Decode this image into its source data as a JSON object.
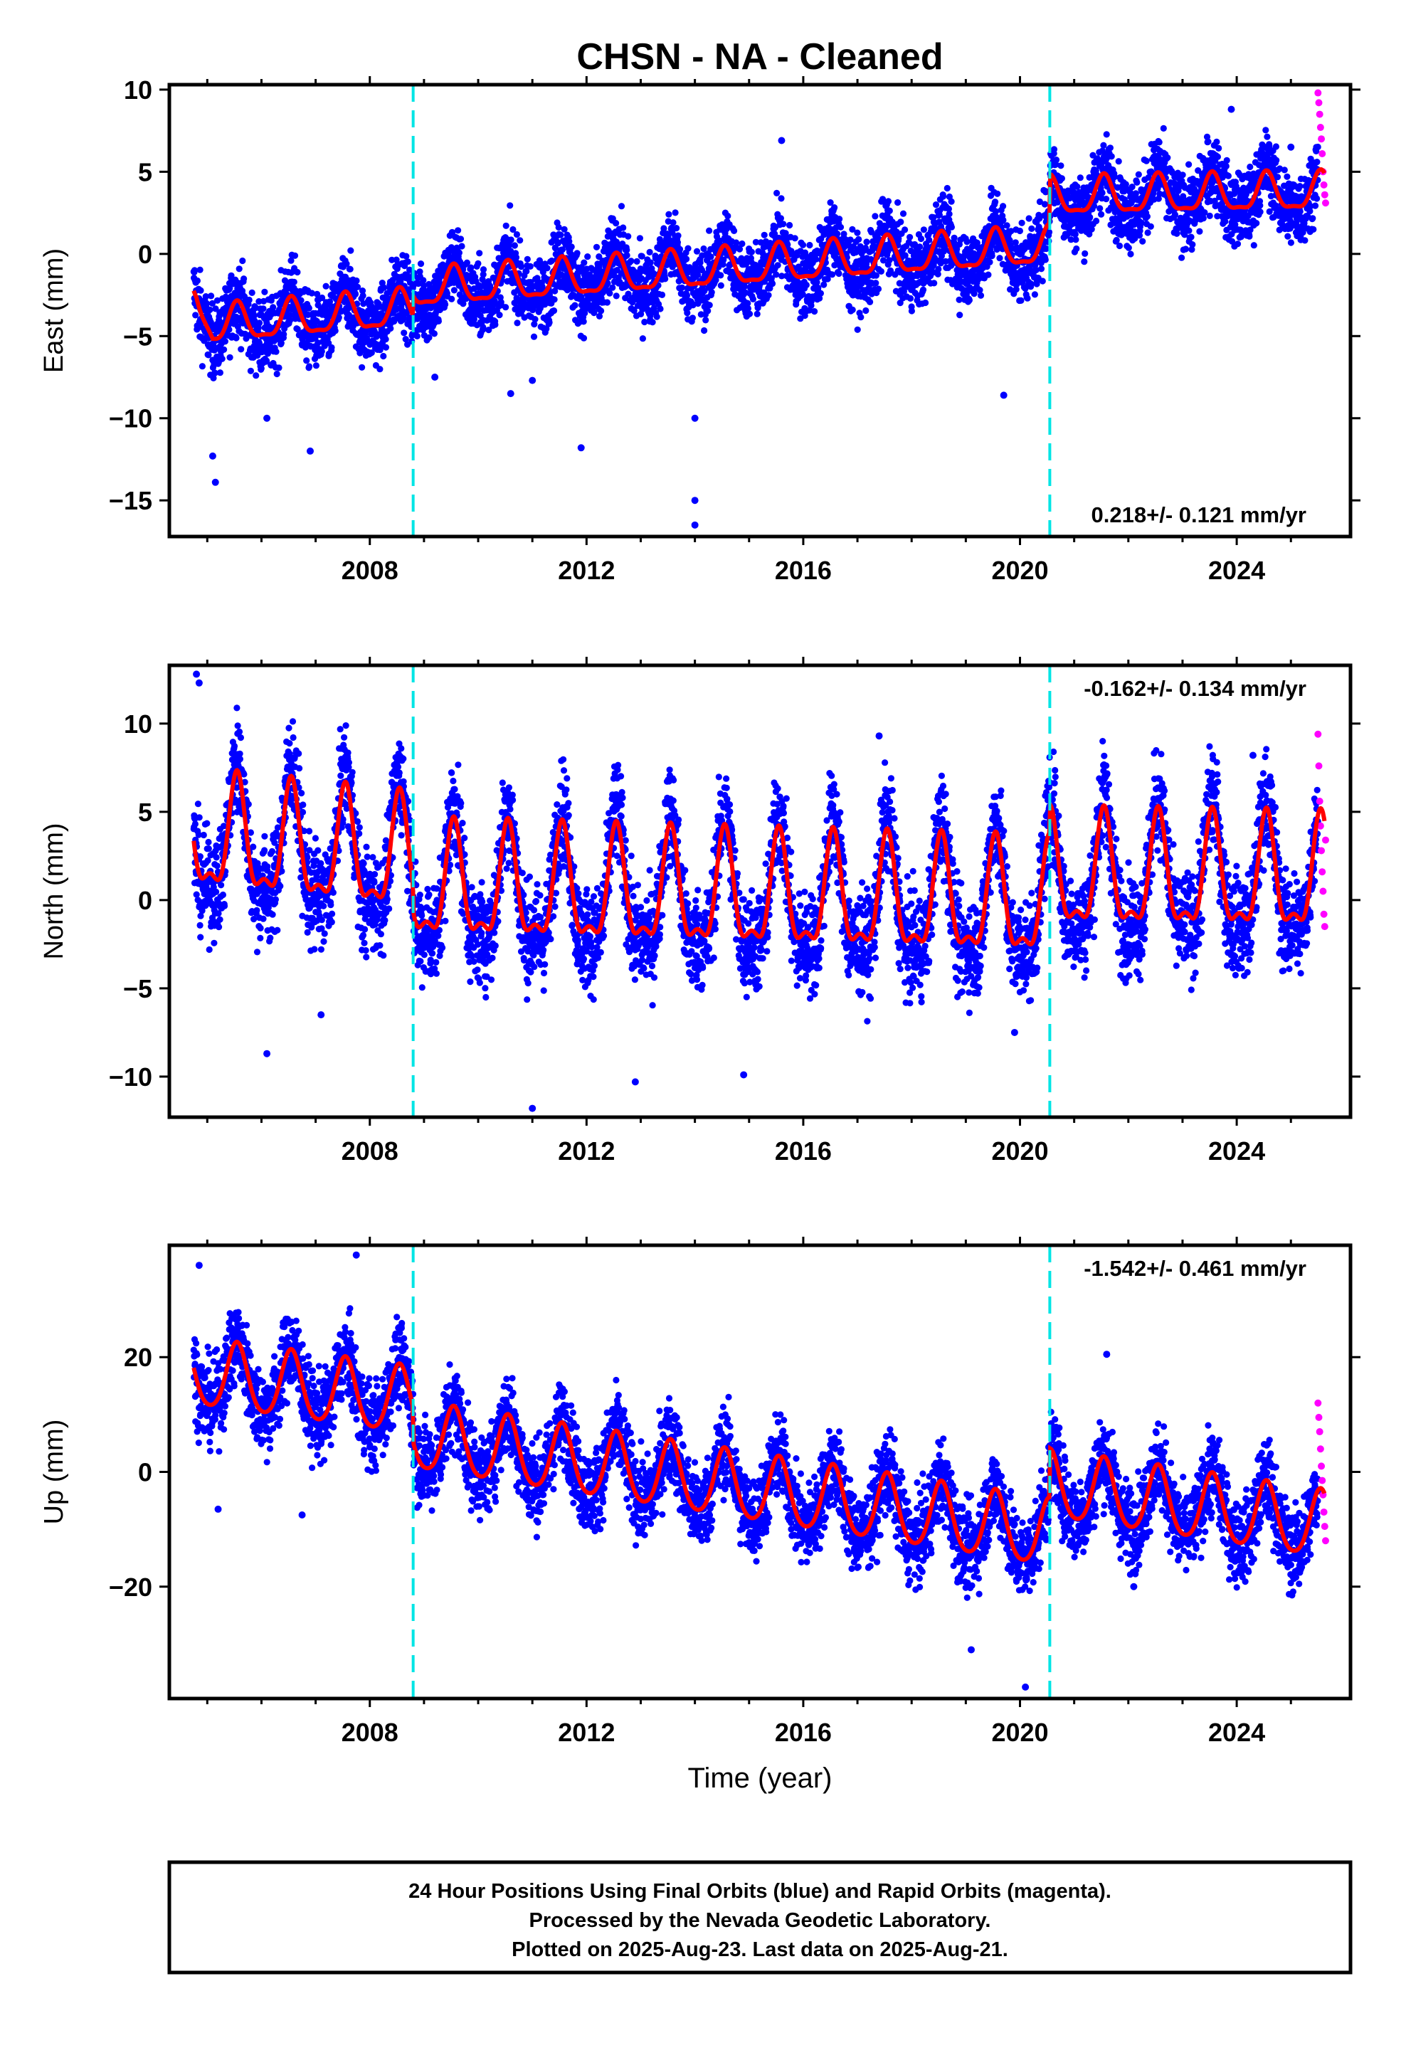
{
  "title": "CHSN  - NA - Cleaned",
  "xlabel": "Time (year)",
  "colors": {
    "final_orbits": "#0000ff",
    "rapid_orbits": "#ff00ff",
    "model_fit": "#ff0000",
    "breaks": "#00e5e5"
  },
  "footer": {
    "line1": "24 Hour Positions Using Final Orbits (blue) and Rapid Orbits (magenta).",
    "line2": "Processed by the Nevada Geodetic Laboratory.",
    "line3": "Plotted on 2025-Aug-23. Last data on 2025-Aug-21."
  },
  "chart_data": [
    {
      "type": "scatter",
      "ylabel": "East (mm)",
      "rate_label": "0.218+/- 0.121 mm/yr",
      "xlim": [
        2004.3,
        2026.1
      ],
      "ylim": [
        -17.2,
        10.3
      ],
      "x_ticks": [
        2008,
        2012,
        2016,
        2020,
        2024
      ],
      "y_ticks": [
        10,
        5,
        0,
        -5,
        -10,
        -15
      ],
      "y_tick_labels": [
        "10",
        "5",
        "0",
        "−5",
        "−10",
        "−15"
      ],
      "break_lines": [
        2008.8,
        2020.55
      ],
      "grid": false,
      "series": [
        {
          "name": "Final Orbits (blue)",
          "x_range": [
            2004.75,
            2025.5
          ],
          "amp": 1.5,
          "noise": 1.1,
          "outliers": [
            [
              2005.1,
              -12.3
            ],
            [
              2005.15,
              -13.9
            ],
            [
              2006.1,
              -10.0
            ],
            [
              2006.9,
              -12.0
            ],
            [
              2009.2,
              -7.5
            ],
            [
              2010.6,
              -8.5
            ],
            [
              2011.0,
              -7.7
            ],
            [
              2011.9,
              -11.8
            ],
            [
              2014.0,
              -10.0
            ],
            [
              2014.0,
              -15.0
            ],
            [
              2014.0,
              -16.5
            ],
            [
              2019.7,
              -8.6
            ],
            [
              2015.6,
              6.9
            ],
            [
              2023.9,
              8.8
            ],
            [
              2025.0,
              6.5
            ]
          ]
        },
        {
          "name": "Rapid Orbits (magenta)",
          "x_range": [
            2025.5,
            2025.64
          ],
          "y_values": [
            9.8,
            9.2,
            8.5,
            7.7,
            7.0,
            6.1,
            5.0,
            4.2,
            3.6,
            3.1
          ]
        },
        {
          "name": "Model fit",
          "anchors": [
            [
              2004.8,
              -2.3
            ],
            [
              2005.1,
              -4.4
            ],
            [
              2008.79,
              -3.4
            ],
            [
              2008.81,
              -2.2
            ],
            [
              2020.54,
              0.4
            ],
            [
              2020.56,
              3.4
            ],
            [
              2025.6,
              3.7
            ]
          ],
          "annual_amp": 1.1,
          "semiannual_amp": 0.35
        }
      ]
    },
    {
      "type": "scatter",
      "ylabel": "North (mm)",
      "rate_label": "-0.162+/- 0.134 mm/yr",
      "xlim": [
        2004.3,
        2026.1
      ],
      "ylim": [
        -12.3,
        13.3
      ],
      "x_ticks": [
        2008,
        2012,
        2016,
        2020,
        2024
      ],
      "y_ticks": [
        10,
        5,
        0,
        -5,
        -10
      ],
      "y_tick_labels": [
        "10",
        "5",
        "0",
        "−5",
        "−10"
      ],
      "break_lines": [
        2008.8,
        2020.55
      ],
      "grid": false,
      "series": [
        {
          "name": "Final Orbits (blue)",
          "x_range": [
            2004.75,
            2025.5
          ],
          "amp": 4.6,
          "noise": 1.4,
          "outliers": [
            [
              2004.8,
              12.8
            ],
            [
              2004.85,
              12.3
            ],
            [
              2006.1,
              -8.7
            ],
            [
              2007.1,
              -6.5
            ],
            [
              2011.0,
              -11.8
            ],
            [
              2012.9,
              -10.3
            ],
            [
              2014.9,
              -9.9
            ],
            [
              2017.4,
              9.3
            ],
            [
              2019.9,
              -7.5
            ],
            [
              2024.3,
              8.2
            ]
          ]
        },
        {
          "name": "Rapid Orbits (magenta)",
          "x_range": [
            2025.5,
            2025.64
          ],
          "y_values": [
            9.4,
            7.6,
            5.6,
            4.2,
            2.8,
            1.6,
            0.5,
            -0.8,
            -1.5,
            3.4
          ]
        },
        {
          "name": "Model fit",
          "anchors": [
            [
              2004.8,
              3.4
            ],
            [
              2008.79,
              2.1
            ],
            [
              2008.81,
              0.6
            ],
            [
              2020.54,
              -0.4
            ],
            [
              2020.56,
              1.2
            ],
            [
              2025.6,
              1.0
            ]
          ],
          "annual_amp": 3.0,
          "semiannual_amp": 1.2
        }
      ]
    },
    {
      "type": "scatter",
      "ylabel": "Up (mm)",
      "rate_label": "-1.542+/- 0.461 mm/yr",
      "xlim": [
        2004.3,
        2026.1
      ],
      "ylim": [
        -39.5,
        39.5
      ],
      "x_ticks": [
        2008,
        2012,
        2016,
        2020,
        2024
      ],
      "y_ticks": [
        20,
        0,
        -20
      ],
      "y_tick_labels": [
        "20",
        "0",
        "−20"
      ],
      "break_lines": [
        2008.8,
        2020.55
      ],
      "grid": false,
      "series": [
        {
          "name": "Final Orbits (blue)",
          "x_range": [
            2004.75,
            2025.5
          ],
          "amp": 5.5,
          "noise": 3.6,
          "outliers": [
            [
              2004.85,
              36.0
            ],
            [
              2007.75,
              37.8
            ],
            [
              2005.2,
              -6.5
            ],
            [
              2006.75,
              -7.5
            ],
            [
              2021.6,
              20.5
            ],
            [
              2020.1,
              -37.5
            ],
            [
              2019.1,
              -31.0
            ],
            [
              2022.1,
              -20.0
            ]
          ]
        },
        {
          "name": "Rapid Orbits (magenta)",
          "x_range": [
            2025.5,
            2025.64
          ],
          "y_values": [
            12.0,
            9.5,
            7.0,
            4.0,
            1.0,
            -1.5,
            -4.0,
            -7.0,
            -9.5,
            -12.0
          ]
        },
        {
          "name": "Model fit",
          "anchors": [
            [
              2004.8,
              17.0
            ],
            [
              2008.79,
              12.0
            ],
            [
              2008.81,
              6.0
            ],
            [
              2020.54,
              -11.0
            ],
            [
              2020.56,
              -2.5
            ],
            [
              2025.6,
              -9.5
            ]
          ],
          "annual_amp": 5.8,
          "semiannual_amp": 0.8
        }
      ]
    }
  ]
}
